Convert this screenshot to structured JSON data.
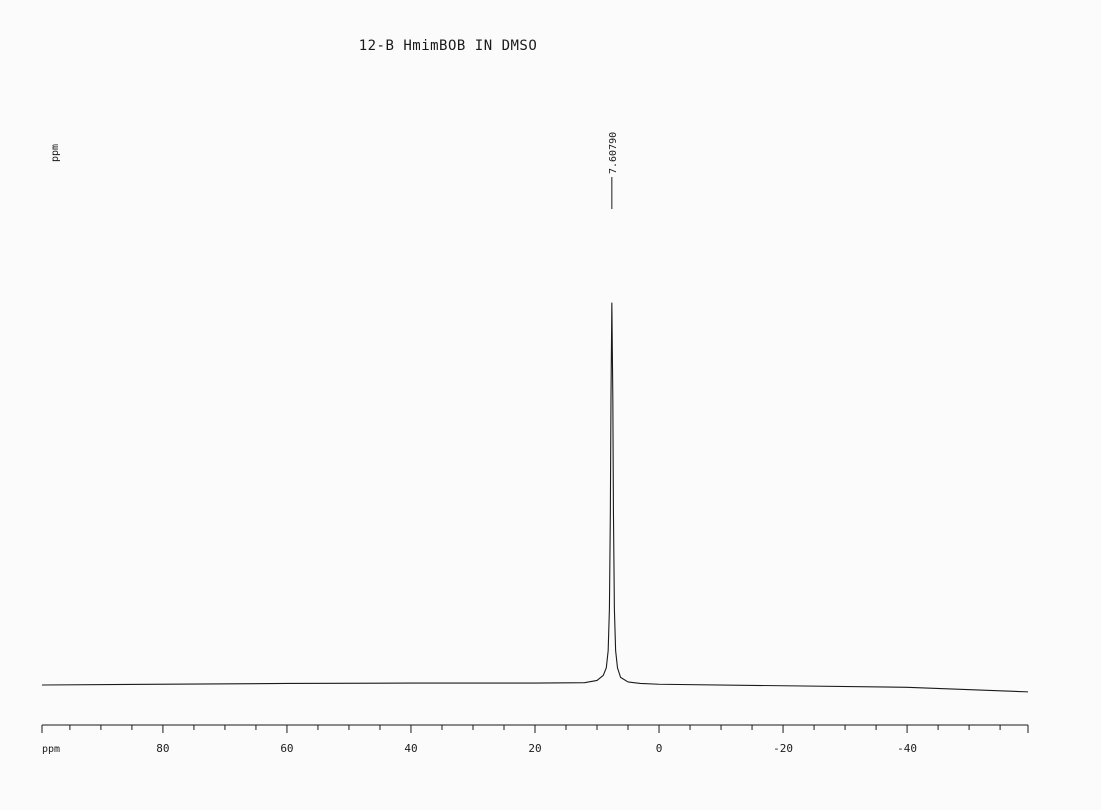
{
  "chart_data": {
    "type": "line",
    "title": "12-B HmimBOB IN DMSO",
    "ylabel": "ppm",
    "xlabel": "ppm",
    "x_reversed": true,
    "xlim": [
      99.5,
      -59.5
    ],
    "x_major_ticks": [
      80,
      60,
      40,
      20,
      0,
      -20,
      -40
    ],
    "x_tick_labels": [
      "80",
      "60",
      "40",
      "20",
      "0",
      "-20",
      "-40"
    ],
    "x_minor_step": 5,
    "grid": false,
    "peaks": [
      {
        "label": "7.60790",
        "x": 7.6079
      }
    ],
    "series": [
      {
        "x": [
          99.5,
          60,
          40,
          20,
          12,
          10,
          9,
          8.5,
          8.2,
          8.0,
          7.85,
          7.75,
          7.6079,
          7.45,
          7.35,
          7.2,
          7.0,
          6.7,
          6.2,
          5,
          3,
          0,
          -20,
          -40,
          -59.5
        ],
        "y": [
          0.0,
          0.004,
          0.005,
          0.005,
          0.006,
          0.012,
          0.025,
          0.045,
          0.09,
          0.2,
          0.45,
          0.75,
          1.0,
          0.75,
          0.45,
          0.2,
          0.09,
          0.045,
          0.02,
          0.008,
          0.004,
          0.002,
          -0.002,
          -0.006,
          -0.018
        ]
      }
    ]
  }
}
